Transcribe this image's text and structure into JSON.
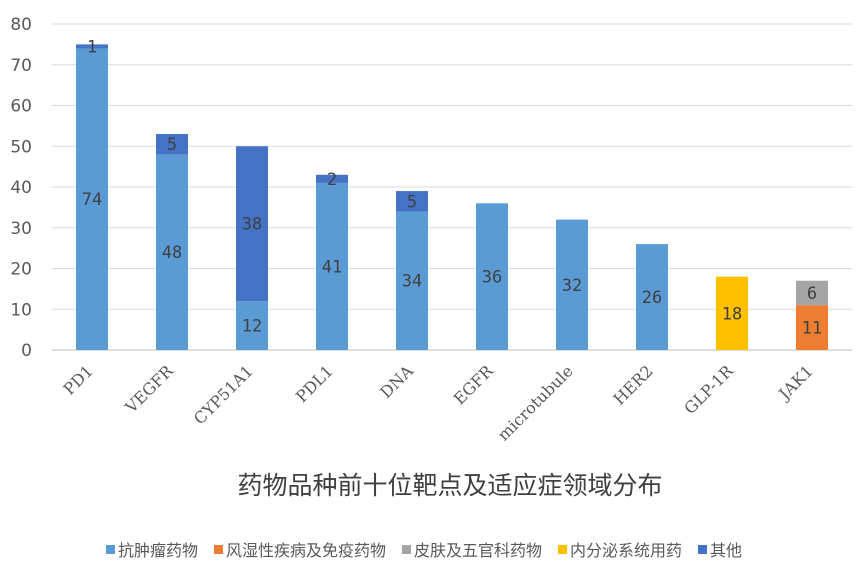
{
  "chart_data": {
    "type": "bar",
    "stacked": true,
    "title": "药物品种前十位靶点及适应症领域分布",
    "xlabel": "",
    "ylabel": "",
    "ylim": [
      0,
      80
    ],
    "yticks": [
      0,
      10,
      20,
      30,
      40,
      50,
      60,
      70,
      80
    ],
    "grid": true,
    "legend_position": "bottom",
    "categories": [
      "PD1",
      "VEGFR",
      "CYP51A1",
      "PDL1",
      "DNA",
      "EGFR",
      "microtubule",
      "HER2",
      "GLP-1R",
      "JAK1"
    ],
    "series": [
      {
        "name": "抗肿瘤药物",
        "color": "#5B9BD5",
        "values": [
          74,
          48,
          12,
          41,
          34,
          36,
          32,
          26,
          0,
          0
        ]
      },
      {
        "name": "风湿性疾病及免疫药物",
        "color": "#ED7D31",
        "values": [
          0,
          0,
          0,
          0,
          0,
          0,
          0,
          0,
          0,
          11
        ]
      },
      {
        "name": "皮肤及五官科药物",
        "color": "#A5A5A5",
        "values": [
          0,
          0,
          0,
          0,
          0,
          0,
          0,
          0,
          0,
          6
        ]
      },
      {
        "name": "内分泌系统用药",
        "color": "#FFC000",
        "values": [
          0,
          0,
          0,
          0,
          0,
          0,
          0,
          0,
          18,
          0
        ]
      },
      {
        "name": "其他",
        "color": "#4472C4",
        "values": [
          1,
          5,
          38,
          2,
          5,
          0,
          0,
          0,
          0,
          0
        ]
      }
    ]
  }
}
